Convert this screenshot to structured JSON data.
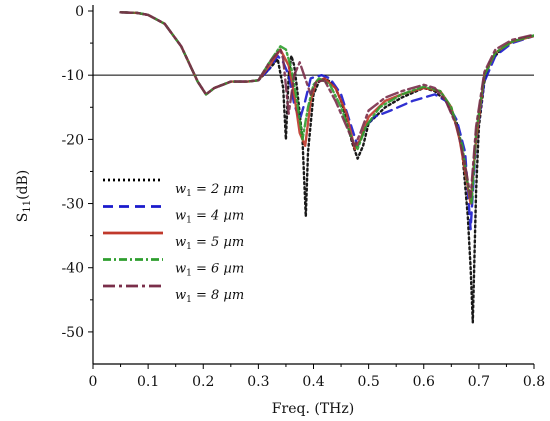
{
  "chart_data": {
    "type": "line",
    "title": "",
    "xlabel": "Freq. (THz)",
    "ylabel": "S11(dB)",
    "ylabel_main": "S",
    "ylabel_sub": "11",
    "ylabel_unit": "(dB)",
    "xlim": [
      0,
      0.8
    ],
    "ylim": [
      -55,
      0
    ],
    "xticks": [
      "0",
      "0.1",
      "0.2",
      "0.3",
      "0.4",
      "0.5",
      "0.6",
      "0.7",
      "0.8"
    ],
    "yticks": [
      "0",
      "-10",
      "-20",
      "-30",
      "-40",
      "-50"
    ],
    "reference_line": {
      "y": -10,
      "color": "#000000"
    },
    "grid": false,
    "legend_position": "left",
    "series": [
      {
        "name": "w1 = 2 µm",
        "label_var": "w",
        "label_sub": "1",
        "label_rest": " = 2 µm",
        "color": "#000000",
        "dash": "2,3",
        "stroke_width": 2.4,
        "x": [
          0.05,
          0.08,
          0.1,
          0.13,
          0.16,
          0.19,
          0.205,
          0.22,
          0.25,
          0.28,
          0.3,
          0.32,
          0.335,
          0.345,
          0.35,
          0.355,
          0.36,
          0.365,
          0.37,
          0.375,
          0.38,
          0.383,
          0.386,
          0.39,
          0.4,
          0.41,
          0.42,
          0.43,
          0.44,
          0.45,
          0.46,
          0.47,
          0.48,
          0.49,
          0.5,
          0.53,
          0.56,
          0.6,
          0.62,
          0.64,
          0.66,
          0.67,
          0.68,
          0.685,
          0.689,
          0.692,
          0.695,
          0.7,
          0.71,
          0.72,
          0.74,
          0.76,
          0.78,
          0.8
        ],
        "y": [
          -0.2,
          -0.3,
          -0.6,
          -2.0,
          -5.5,
          -11.0,
          -13.0,
          -12.0,
          -11.0,
          -11.0,
          -10.8,
          -9.0,
          -7.5,
          -12.0,
          -20.0,
          -10.0,
          -7.0,
          -8.5,
          -12.0,
          -16.0,
          -20.0,
          -26.0,
          -32.0,
          -22.0,
          -13.0,
          -11.0,
          -10.5,
          -11.0,
          -12.0,
          -14.0,
          -17.0,
          -20.5,
          -23.0,
          -21.0,
          -17.5,
          -15.0,
          -13.5,
          -12.0,
          -12.5,
          -14.0,
          -17.5,
          -22.0,
          -32.0,
          -40.0,
          -48.5,
          -38.0,
          -28.0,
          -18.0,
          -11.0,
          -8.0,
          -6.0,
          -4.8,
          -4.2,
          -3.8
        ]
      },
      {
        "name": "w1 = 4 µm",
        "label_var": "w",
        "label_sub": "1",
        "label_rest": " = 4 µm",
        "color": "#1a1acc",
        "dash": "10,6",
        "stroke_width": 2.4,
        "x": [
          0.05,
          0.08,
          0.1,
          0.13,
          0.16,
          0.19,
          0.205,
          0.22,
          0.25,
          0.28,
          0.3,
          0.32,
          0.335,
          0.345,
          0.355,
          0.365,
          0.375,
          0.385,
          0.395,
          0.405,
          0.415,
          0.43,
          0.45,
          0.465,
          0.48,
          0.495,
          0.51,
          0.54,
          0.58,
          0.62,
          0.64,
          0.66,
          0.675,
          0.685,
          0.695,
          0.71,
          0.73,
          0.76,
          0.8
        ],
        "y": [
          -0.2,
          -0.3,
          -0.6,
          -2.0,
          -5.5,
          -11.0,
          -13.0,
          -12.0,
          -11.0,
          -11.0,
          -10.8,
          -9.0,
          -7.0,
          -8.0,
          -10.0,
          -14.5,
          -17.0,
          -14.0,
          -10.5,
          -10.2,
          -10.0,
          -10.5,
          -13.0,
          -17.0,
          -21.0,
          -18.0,
          -16.5,
          -15.5,
          -14.0,
          -13.0,
          -14.0,
          -17.0,
          -22.0,
          -34.0,
          -20.0,
          -11.0,
          -7.0,
          -5.0,
          -3.9
        ]
      },
      {
        "name": "w1 = 5 µm",
        "label_var": "w",
        "label_sub": "1",
        "label_rest": " = 5 µm",
        "color": "#c0392b",
        "dash": "",
        "stroke_width": 2.4,
        "x": [
          0.05,
          0.08,
          0.1,
          0.13,
          0.16,
          0.19,
          0.205,
          0.22,
          0.25,
          0.28,
          0.3,
          0.32,
          0.34,
          0.355,
          0.365,
          0.375,
          0.385,
          0.395,
          0.405,
          0.42,
          0.44,
          0.46,
          0.475,
          0.485,
          0.5,
          0.53,
          0.56,
          0.6,
          0.63,
          0.65,
          0.665,
          0.675,
          0.685,
          0.695,
          0.71,
          0.73,
          0.76,
          0.8
        ],
        "y": [
          -0.2,
          -0.3,
          -0.6,
          -2.0,
          -5.5,
          -11.0,
          -13.0,
          -12.0,
          -11.0,
          -11.0,
          -10.8,
          -8.5,
          -6.0,
          -8.5,
          -13.0,
          -19.0,
          -21.0,
          -14.0,
          -11.0,
          -10.5,
          -12.0,
          -16.0,
          -21.5,
          -20.0,
          -16.5,
          -14.0,
          -13.0,
          -12.0,
          -12.5,
          -15.0,
          -20.0,
          -25.0,
          -30.0,
          -20.0,
          -10.0,
          -6.5,
          -4.8,
          -3.9
        ]
      },
      {
        "name": "w1 = 6 µm",
        "label_var": "w",
        "label_sub": "1",
        "label_rest": " = 6 µm",
        "color": "#2e9e2e",
        "dash": "8,3,2,3",
        "stroke_width": 2.4,
        "x": [
          0.05,
          0.08,
          0.1,
          0.13,
          0.16,
          0.19,
          0.205,
          0.22,
          0.25,
          0.28,
          0.3,
          0.32,
          0.34,
          0.35,
          0.36,
          0.37,
          0.38,
          0.39,
          0.4,
          0.41,
          0.43,
          0.45,
          0.47,
          0.48,
          0.495,
          0.52,
          0.56,
          0.6,
          0.63,
          0.65,
          0.67,
          0.68,
          0.687,
          0.695,
          0.71,
          0.73,
          0.76,
          0.8
        ],
        "y": [
          -0.2,
          -0.3,
          -0.6,
          -2.0,
          -5.5,
          -11.0,
          -13.0,
          -12.0,
          -11.0,
          -11.0,
          -10.8,
          -8.0,
          -5.5,
          -6.0,
          -9.0,
          -14.0,
          -20.0,
          -15.0,
          -11.5,
          -10.5,
          -11.5,
          -15.0,
          -20.0,
          -21.5,
          -18.0,
          -15.0,
          -13.0,
          -11.8,
          -12.5,
          -15.0,
          -21.0,
          -27.0,
          -30.0,
          -19.0,
          -10.0,
          -6.5,
          -4.8,
          -3.8
        ]
      },
      {
        "name": "w1 = 8 µm",
        "label_var": "w",
        "label_sub": "1",
        "label_rest": " = 8 µm",
        "color": "#7a2e4a",
        "dash": "12,4,3,4",
        "stroke_width": 2.4,
        "x": [
          0.05,
          0.08,
          0.1,
          0.13,
          0.16,
          0.19,
          0.205,
          0.22,
          0.25,
          0.28,
          0.3,
          0.32,
          0.34,
          0.345,
          0.355,
          0.365,
          0.375,
          0.385,
          0.395,
          0.405,
          0.42,
          0.44,
          0.46,
          0.475,
          0.485,
          0.5,
          0.53,
          0.56,
          0.6,
          0.62,
          0.64,
          0.66,
          0.675,
          0.685,
          0.695,
          0.71,
          0.73,
          0.76,
          0.8
        ],
        "y": [
          -0.2,
          -0.3,
          -0.6,
          -2.0,
          -5.5,
          -11.0,
          -13.0,
          -12.0,
          -11.0,
          -11.0,
          -10.8,
          -8.0,
          -6.0,
          -7.5,
          -16.0,
          -10.0,
          -8.0,
          -10.5,
          -13.0,
          -11.0,
          -10.8,
          -14.0,
          -18.0,
          -21.0,
          -19.0,
          -15.5,
          -13.5,
          -12.5,
          -11.5,
          -12.0,
          -14.0,
          -18.0,
          -24.0,
          -29.0,
          -18.0,
          -9.5,
          -6.0,
          -4.5,
          -3.7
        ]
      }
    ]
  }
}
